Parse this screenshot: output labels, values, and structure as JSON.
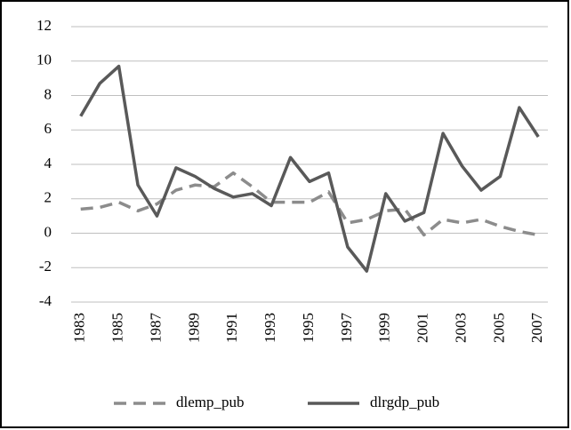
{
  "chart_data": {
    "type": "line",
    "categories": [
      "1983",
      null,
      "1985",
      null,
      "1987",
      null,
      "1989",
      null,
      "1991",
      null,
      "1993",
      null,
      "1995",
      null,
      "1997",
      null,
      "1999",
      null,
      "2001",
      null,
      "2003",
      null,
      "2005",
      null,
      "2007"
    ],
    "series": [
      {
        "name": "dlemp_pub",
        "color": "#8c8c8c",
        "dash": true,
        "values": [
          1.4,
          1.5,
          1.8,
          1.3,
          1.7,
          2.5,
          2.8,
          2.7,
          3.5,
          2.7,
          1.8,
          1.8,
          1.8,
          2.4,
          0.6,
          0.8,
          1.3,
          1.4,
          -0.1,
          0.8,
          0.6,
          0.8,
          0.4,
          0.1,
          -0.1
        ]
      },
      {
        "name": "dlrgdp_pub",
        "color": "#595959",
        "dash": false,
        "values": [
          6.8,
          8.7,
          9.7,
          2.8,
          1.0,
          3.8,
          3.3,
          2.6,
          2.1,
          2.3,
          1.6,
          4.4,
          3.0,
          3.5,
          -0.8,
          -2.2,
          2.3,
          0.7,
          1.2,
          5.8,
          3.9,
          2.5,
          3.3,
          7.3,
          5.6
        ]
      }
    ],
    "ylim": [
      -4,
      12
    ],
    "yticks": [
      -4,
      -2,
      0,
      2,
      4,
      6,
      8,
      10,
      12
    ],
    "grid": true,
    "legend": "bottom"
  }
}
